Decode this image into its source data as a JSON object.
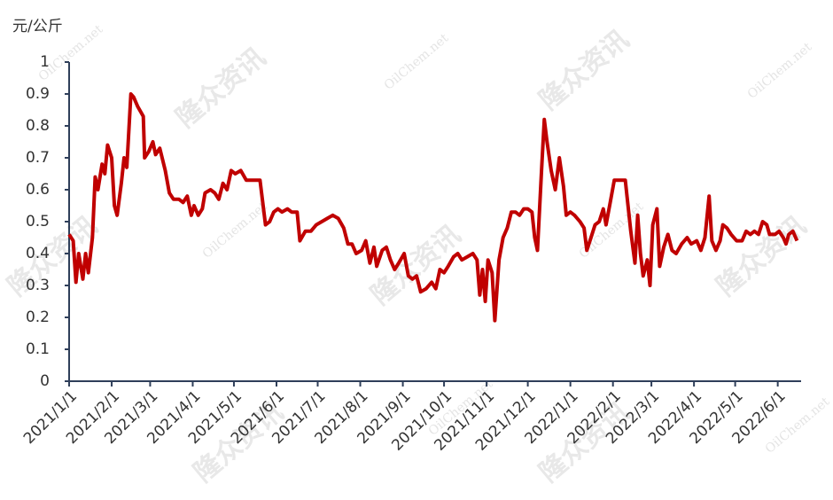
{
  "chart_data": {
    "type": "line",
    "y_label": "元/公斤",
    "watermarks": [
      "隆众资讯",
      "OilChem.net"
    ],
    "xlim": [
      "2021/1/1",
      "2022/6/18"
    ],
    "xticks": [
      "2021/1/1",
      "2021/2/1",
      "2021/3/1",
      "2021/4/1",
      "2021/5/1",
      "2021/6/1",
      "2021/7/1",
      "2021/8/1",
      "2021/9/1",
      "2021/10/1",
      "2021/11/1",
      "2021/12/1",
      "2022/1/1",
      "2022/2/1",
      "2022/3/1",
      "2022/4/1",
      "2022/5/1",
      "2022/6/1"
    ],
    "ylim": [
      0,
      1
    ],
    "yticks": [
      0,
      0.1,
      0.2,
      0.3,
      0.4,
      0.5,
      0.6,
      0.7,
      0.8,
      0.9,
      1
    ],
    "x": [
      "2021/1/1",
      "2021/1/4",
      "2021/1/6",
      "2021/1/8",
      "2021/1/11",
      "2021/1/13",
      "2021/1/15",
      "2021/1/18",
      "2021/1/20",
      "2021/1/22",
      "2021/1/25",
      "2021/1/27",
      "2021/1/29",
      "2021/2/1",
      "2021/2/3",
      "2021/2/5",
      "2021/2/8",
      "2021/2/10",
      "2021/2/12",
      "2021/2/15",
      "2021/2/17",
      "2021/2/20",
      "2021/2/24",
      "2021/2/25",
      "2021/2/28",
      "2021/3/3",
      "2021/3/5",
      "2021/3/8",
      "2021/3/12",
      "2021/3/15",
      "2021/3/18",
      "2021/3/22",
      "2021/3/25",
      "2021/3/28",
      "2021/3/31",
      "2021/4/2",
      "2021/4/5",
      "2021/4/8",
      "2021/4/10",
      "2021/4/14",
      "2021/4/17",
      "2021/4/20",
      "2021/4/23",
      "2021/4/26",
      "2021/4/29",
      "2021/5/2",
      "2021/5/6",
      "2021/5/10",
      "2021/5/15",
      "2021/5/20",
      "2021/5/24",
      "2021/5/27",
      "2021/5/30",
      "2021/6/2",
      "2021/6/5",
      "2021/6/9",
      "2021/6/12",
      "2021/6/16",
      "2021/6/18",
      "2021/6/22",
      "2021/6/26",
      "2021/6/30",
      "2021/7/4",
      "2021/7/8",
      "2021/7/12",
      "2021/7/16",
      "2021/7/20",
      "2021/7/23",
      "2021/7/26",
      "2021/7/29",
      "2021/8/2",
      "2021/8/5",
      "2021/8/8",
      "2021/8/11",
      "2021/8/13",
      "2021/8/17",
      "2021/8/20",
      "2021/8/23",
      "2021/8/26",
      "2021/8/29",
      "2021/9/2",
      "2021/9/5",
      "2021/9/8",
      "2021/9/11",
      "2021/9/14",
      "2021/9/18",
      "2021/9/22",
      "2021/9/25",
      "2021/9/28",
      "2021/10/1",
      "2021/10/4",
      "2021/10/8",
      "2021/10/11",
      "2021/10/14",
      "2021/10/18",
      "2021/10/22",
      "2021/10/25",
      "2021/10/27",
      "2021/10/29",
      "2021/10/31",
      "2021/11/2",
      "2021/11/5",
      "2021/11/7",
      "2021/11/10",
      "2021/11/13",
      "2021/11/16",
      "2021/11/19",
      "2021/11/22",
      "2021/11/25",
      "2021/11/28",
      "2021/12/1",
      "2021/12/4",
      "2021/12/6",
      "2021/12/8",
      "2021/12/11",
      "2021/12/13",
      "2021/12/15",
      "2021/12/18",
      "2021/12/21",
      "2021/12/24",
      "2021/12/27",
      "2021/12/29",
      "2022/1/1",
      "2022/1/4",
      "2022/1/8",
      "2022/1/11",
      "2022/1/13",
      "2022/1/16",
      "2022/1/19",
      "2022/1/22",
      "2022/1/25",
      "2022/1/27",
      "2022/1/30",
      "2022/2/2",
      "2022/2/6",
      "2022/2/10",
      "2022/2/12",
      "2022/2/14",
      "2022/2/17",
      "2022/2/19",
      "2022/2/21",
      "2022/2/23",
      "2022/2/26",
      "2022/2/28",
      "2022/3/2",
      "2022/3/5",
      "2022/3/7",
      "2022/3/10",
      "2022/3/13",
      "2022/3/16",
      "2022/3/19",
      "2022/3/23",
      "2022/3/27",
      "2022/3/30",
      "2022/4/3",
      "2022/4/6",
      "2022/4/9",
      "2022/4/12",
      "2022/4/14",
      "2022/4/17",
      "2022/4/20",
      "2022/4/22",
      "2022/4/25",
      "2022/4/28",
      "2022/5/2",
      "2022/5/6",
      "2022/5/9",
      "2022/5/12",
      "2022/5/15",
      "2022/5/18",
      "2022/5/21",
      "2022/5/24",
      "2022/5/26",
      "2022/5/30",
      "2022/6/2",
      "2022/6/5",
      "2022/6/7",
      "2022/6/9",
      "2022/6/12",
      "2022/6/15"
    ],
    "series": [
      {
        "color": "#c00000",
        "values": [
          0.46,
          0.44,
          0.31,
          0.4,
          0.32,
          0.4,
          0.34,
          0.45,
          0.64,
          0.6,
          0.68,
          0.65,
          0.74,
          0.7,
          0.55,
          0.52,
          0.62,
          0.7,
          0.67,
          0.9,
          0.89,
          0.86,
          0.83,
          0.7,
          0.72,
          0.75,
          0.71,
          0.73,
          0.66,
          0.59,
          0.57,
          0.57,
          0.56,
          0.58,
          0.52,
          0.55,
          0.52,
          0.54,
          0.59,
          0.6,
          0.59,
          0.57,
          0.62,
          0.6,
          0.66,
          0.65,
          0.66,
          0.63,
          0.63,
          0.63,
          0.49,
          0.5,
          0.53,
          0.54,
          0.53,
          0.54,
          0.53,
          0.53,
          0.44,
          0.47,
          0.47,
          0.49,
          0.5,
          0.51,
          0.52,
          0.51,
          0.48,
          0.43,
          0.43,
          0.4,
          0.41,
          0.44,
          0.37,
          0.42,
          0.36,
          0.41,
          0.42,
          0.38,
          0.35,
          0.37,
          0.4,
          0.33,
          0.32,
          0.33,
          0.28,
          0.29,
          0.31,
          0.29,
          0.35,
          0.34,
          0.36,
          0.39,
          0.4,
          0.38,
          0.39,
          0.4,
          0.38,
          0.27,
          0.35,
          0.25,
          0.38,
          0.34,
          0.19,
          0.38,
          0.45,
          0.48,
          0.53,
          0.53,
          0.52,
          0.54,
          0.54,
          0.53,
          0.45,
          0.41,
          0.66,
          0.82,
          0.75,
          0.66,
          0.6,
          0.7,
          0.61,
          0.52,
          0.53,
          0.52,
          0.5,
          0.48,
          0.41,
          0.45,
          0.49,
          0.5,
          0.54,
          0.49,
          0.56,
          0.63,
          0.63,
          0.63,
          0.55,
          0.47,
          0.37,
          0.52,
          0.4,
          0.33,
          0.38,
          0.3,
          0.49,
          0.54,
          0.36,
          0.42,
          0.46,
          0.41,
          0.4,
          0.43,
          0.45,
          0.43,
          0.44,
          0.41,
          0.45,
          0.58,
          0.44,
          0.41,
          0.44,
          0.49,
          0.48,
          0.46,
          0.44,
          0.44,
          0.47,
          0.46,
          0.47,
          0.46,
          0.5,
          0.49,
          0.46,
          0.46,
          0.47,
          0.45,
          0.43,
          0.46,
          0.47,
          0.44
        ]
      }
    ]
  }
}
